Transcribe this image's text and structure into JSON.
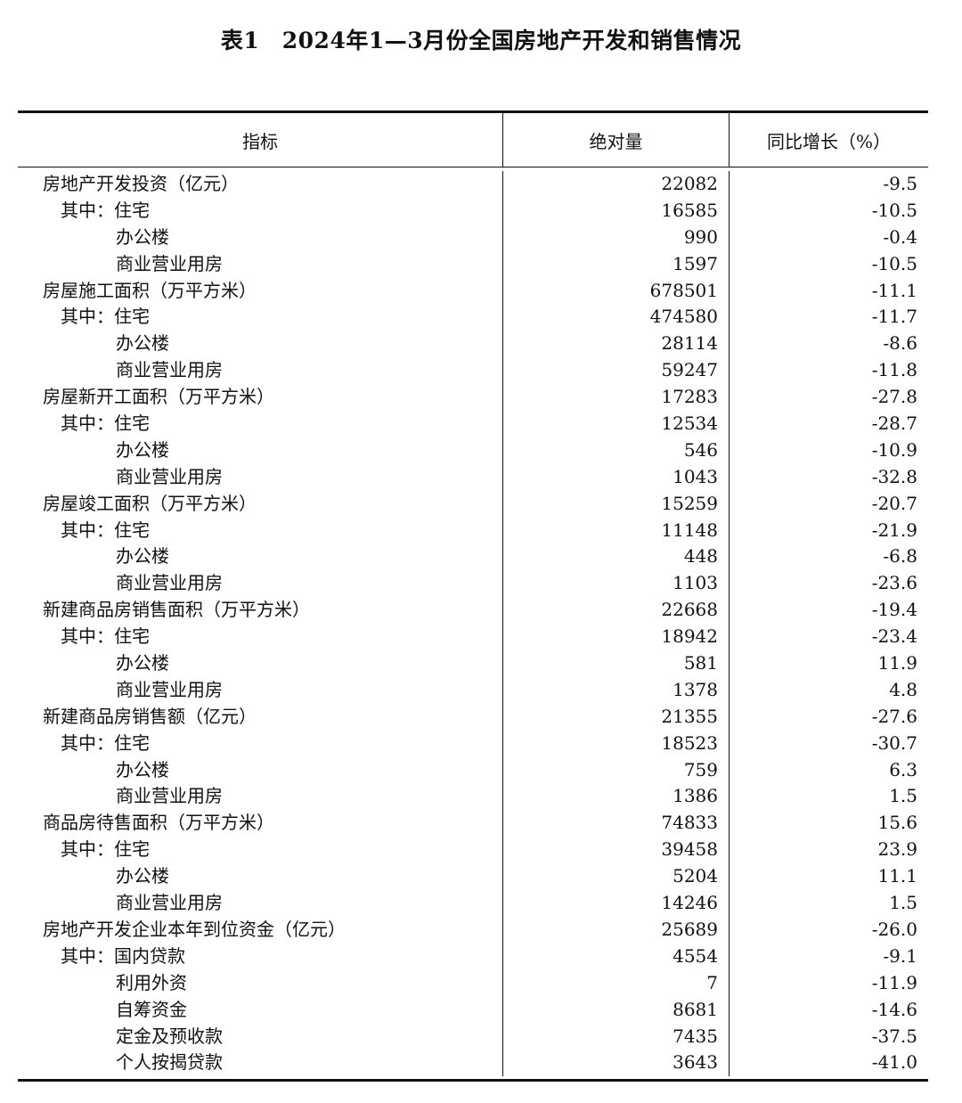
{
  "title": "表1　2024年1—3月份全国房地产开发和销售情况",
  "headers": {
    "indicator": "指标",
    "absolute": "绝对量",
    "yoy": "同比增长（%）"
  },
  "rows": [
    {
      "label": "房地产开发投资（亿元）",
      "level": 0,
      "value": "22082",
      "yoy": "-9.5"
    },
    {
      "label": "其中：住宅",
      "level": 1,
      "value": "16585",
      "yoy": "-10.5"
    },
    {
      "label": "办公楼",
      "level": 2,
      "value": "990",
      "yoy": "-0.4"
    },
    {
      "label": "商业营业用房",
      "level": 2,
      "value": "1597",
      "yoy": "-10.5"
    },
    {
      "label": "房屋施工面积（万平方米）",
      "level": 0,
      "value": "678501",
      "yoy": "-11.1"
    },
    {
      "label": "其中：住宅",
      "level": 1,
      "value": "474580",
      "yoy": "-11.7"
    },
    {
      "label": "办公楼",
      "level": 2,
      "value": "28114",
      "yoy": "-8.6"
    },
    {
      "label": "商业营业用房",
      "level": 2,
      "value": "59247",
      "yoy": "-11.8"
    },
    {
      "label": "房屋新开工面积（万平方米）",
      "level": 0,
      "value": "17283",
      "yoy": "-27.8"
    },
    {
      "label": "其中：住宅",
      "level": 1,
      "value": "12534",
      "yoy": "-28.7"
    },
    {
      "label": "办公楼",
      "level": 2,
      "value": "546",
      "yoy": "-10.9"
    },
    {
      "label": "商业营业用房",
      "level": 2,
      "value": "1043",
      "yoy": "-32.8"
    },
    {
      "label": "房屋竣工面积（万平方米）",
      "level": 0,
      "value": "15259",
      "yoy": "-20.7"
    },
    {
      "label": "其中：住宅",
      "level": 1,
      "value": "11148",
      "yoy": "-21.9"
    },
    {
      "label": "办公楼",
      "level": 2,
      "value": "448",
      "yoy": "-6.8"
    },
    {
      "label": "商业营业用房",
      "level": 2,
      "value": "1103",
      "yoy": "-23.6"
    },
    {
      "label": "新建商品房销售面积（万平方米）",
      "level": 0,
      "value": "22668",
      "yoy": "-19.4"
    },
    {
      "label": "其中：住宅",
      "level": 1,
      "value": "18942",
      "yoy": "-23.4"
    },
    {
      "label": "办公楼",
      "level": 2,
      "value": "581",
      "yoy": "11.9"
    },
    {
      "label": "商业营业用房",
      "level": 2,
      "value": "1378",
      "yoy": "4.8"
    },
    {
      "label": "新建商品房销售额（亿元）",
      "level": 0,
      "value": "21355",
      "yoy": "-27.6"
    },
    {
      "label": "其中：住宅",
      "level": 1,
      "value": "18523",
      "yoy": "-30.7"
    },
    {
      "label": "办公楼",
      "level": 2,
      "value": "759",
      "yoy": "6.3"
    },
    {
      "label": "商业营业用房",
      "level": 2,
      "value": "1386",
      "yoy": "1.5"
    },
    {
      "label": "商品房待售面积（万平方米）",
      "level": 0,
      "value": "74833",
      "yoy": "15.6"
    },
    {
      "label": "其中：住宅",
      "level": 1,
      "value": "39458",
      "yoy": "23.9"
    },
    {
      "label": "办公楼",
      "level": 2,
      "value": "5204",
      "yoy": "11.1"
    },
    {
      "label": "商业营业用房",
      "level": 2,
      "value": "14246",
      "yoy": "1.5"
    },
    {
      "label": "房地产开发企业本年到位资金（亿元）",
      "level": 0,
      "value": "25689",
      "yoy": "-26.0"
    },
    {
      "label": "其中：国内贷款",
      "level": 1,
      "value": "4554",
      "yoy": "-9.1"
    },
    {
      "label": "利用外资",
      "level": 2,
      "value": "7",
      "yoy": "-11.9"
    },
    {
      "label": "自筹资金",
      "level": 2,
      "value": "8681",
      "yoy": "-14.6"
    },
    {
      "label": "定金及预收款",
      "level": 2,
      "value": "7435",
      "yoy": "-37.5"
    },
    {
      "label": "个人按揭贷款",
      "level": 2,
      "value": "3643",
      "yoy": "-41.0"
    }
  ]
}
